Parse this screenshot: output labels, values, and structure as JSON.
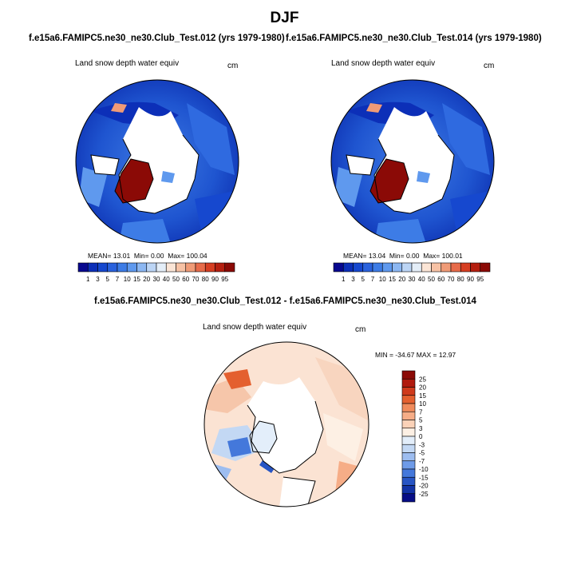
{
  "title": "DJF",
  "panels": [
    {
      "case_title": "f.e15a6.FAMIPC5.ne30_ne30.Club_Test.012 (yrs 1979-1980)",
      "variable": "Land snow depth water equiv",
      "units": "cm",
      "stats": {
        "mean_label": "MEAN=",
        "mean": "13.01",
        "min_label": "Min=",
        "min": "0.00",
        "max_label": "Max=",
        "max": "100.04"
      }
    },
    {
      "case_title": "f.e15a6.FAMIPC5.ne30_ne30.Club_Test.014 (yrs 1979-1980)",
      "variable": "Land snow depth water equiv",
      "units": "cm",
      "stats": {
        "mean_label": "MEAN=",
        "mean": "13.04",
        "min_label": "Min=",
        "min": "0.00",
        "max_label": "Max=",
        "max": "100.01"
      }
    }
  ],
  "colorbar": {
    "levels": [
      "1",
      "3",
      "5",
      "7",
      "10",
      "15",
      "20",
      "30",
      "40",
      "50",
      "60",
      "70",
      "80",
      "90",
      "95"
    ],
    "colors": [
      "#08088f",
      "#0c2fb8",
      "#1648cf",
      "#2a62dd",
      "#3d7ce6",
      "#5f99ee",
      "#8cb7f2",
      "#bcd5f5",
      "#e4eef8",
      "#fbe5d6",
      "#f7c2a5",
      "#f09b77",
      "#e76b4a",
      "#d63e22",
      "#b51f10",
      "#8b0a06"
    ]
  },
  "diff": {
    "title": "f.e15a6.FAMIPC5.ne30_ne30.Club_Test.012 - f.e15a6.FAMIPC5.ne30_ne30.Club_Test.014",
    "variable": "Land snow depth water equiv",
    "units": "cm",
    "stats": {
      "min_label": "MIN =",
      "min": "-34.67",
      "max_label": "MAX =",
      "max": "12.97"
    },
    "levels": [
      "25",
      "20",
      "15",
      "10",
      "7",
      "5",
      "3",
      "0",
      "-3",
      "-5",
      "-7",
      "-10",
      "-15",
      "-20",
      "-25"
    ],
    "colors": [
      "#8b0a06",
      "#b01a0e",
      "#cf3a1c",
      "#e4602f",
      "#f08b5c",
      "#f6ad87",
      "#fbd2b8",
      "#fdf0e4",
      "#e3eefa",
      "#c3d8f4",
      "#9dbdf0",
      "#6e9be8",
      "#4478db",
      "#2755c4",
      "#1233a6",
      "#070d86"
    ]
  }
}
